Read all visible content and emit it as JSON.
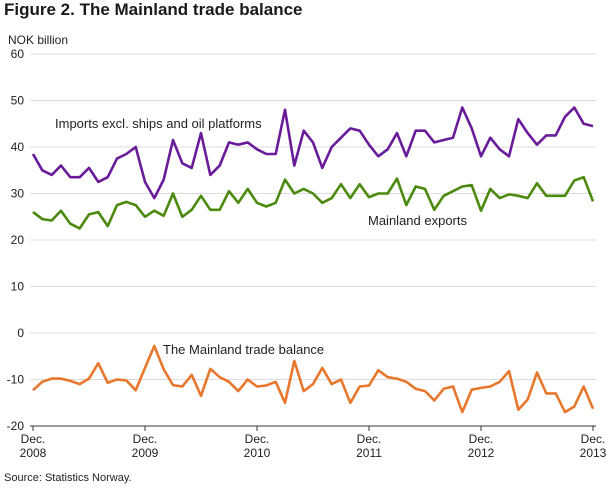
{
  "figure_title": "Figure 2. The Mainland trade balance",
  "source": "Source: Statistics Norway.",
  "chart_data": {
    "type": "line",
    "ylabel": "NOK billion",
    "ylim": [
      -20,
      60
    ],
    "yticks": [
      -20,
      -10,
      0,
      10,
      20,
      30,
      40,
      50,
      60
    ],
    "grid": true,
    "x_start": "Dec. 2008",
    "x_end": "Dec. 2013",
    "xticks": [
      {
        "month": "Dec.",
        "year": "2008"
      },
      {
        "month": "Dec.",
        "year": "2009"
      },
      {
        "month": "Dec.",
        "year": "2010"
      },
      {
        "month": "Dec.",
        "year": "2011"
      },
      {
        "month": "Dec.",
        "year": "2012"
      },
      {
        "month": "Dec.",
        "year": "2013"
      }
    ],
    "series": [
      {
        "name": "Imports excl. ships and oil platforms",
        "color": "#6a1b9a",
        "values": [
          38.5,
          35,
          34,
          36,
          33.5,
          33.5,
          35.5,
          32.5,
          33.5,
          37.5,
          38.5,
          40,
          32.5,
          29,
          33,
          41.5,
          36.5,
          35.5,
          43,
          34,
          36,
          41,
          40.5,
          41,
          39.5,
          38.5,
          38.5,
          48,
          36,
          43.5,
          41,
          35.5,
          40,
          42,
          44,
          43.5,
          40.5,
          38,
          39.5,
          43,
          38,
          43.5,
          43.5,
          41,
          41.5,
          42,
          48.5,
          44,
          38,
          42,
          39.5,
          38,
          46,
          43,
          40.5,
          42.5,
          42.5,
          46.5,
          48.5,
          45,
          44.5
        ]
      },
      {
        "name": "Mainland exports",
        "color": "#4b8a0e",
        "values": [
          26,
          24.5,
          24.2,
          26.3,
          23.5,
          22.5,
          25.5,
          26,
          23,
          27.5,
          28.2,
          27.5,
          25,
          26.3,
          25.2,
          30,
          25,
          26.5,
          29.5,
          26.5,
          26.5,
          30.5,
          28,
          31,
          28,
          27.2,
          28,
          33,
          30,
          31,
          30,
          28,
          29,
          32,
          29,
          32,
          29.2,
          30,
          30,
          33.2,
          27.5,
          31.5,
          31,
          26.5,
          29.5,
          30.5,
          31.5,
          31.8,
          26.3,
          31,
          29,
          29.8,
          29.5,
          29,
          32.2,
          29.5,
          29.5,
          29.5,
          32.8,
          33.5,
          28.3
        ]
      },
      {
        "name": "The Mainland trade balance",
        "color": "#e8772e",
        "values": [
          -12.3,
          -10.5,
          -9.8,
          -9.8,
          -10.3,
          -11,
          -9.8,
          -6.5,
          -10.7,
          -10,
          -10.2,
          -12.3,
          -7.5,
          -2.8,
          -7.8,
          -11.2,
          -11.5,
          -9,
          -13.5,
          -7.7,
          -9.5,
          -10.5,
          -12.5,
          -10,
          -11.5,
          -11.3,
          -10.5,
          -15,
          -6,
          -12.5,
          -11,
          -7.5,
          -11,
          -10,
          -15,
          -11.5,
          -11.3,
          -8,
          -9.5,
          -9.8,
          -10.5,
          -12,
          -12.5,
          -14.5,
          -12,
          -11.5,
          -17,
          -12.2,
          -11.8,
          -11.5,
          -10.5,
          -8.2,
          -16.5,
          -14.3,
          -8.5,
          -13,
          -13,
          -17,
          -15.8,
          -11.5,
          -16.3
        ]
      }
    ],
    "series_labels": [
      {
        "series": 0,
        "text": "Imports excl. ships and oil platforms"
      },
      {
        "series": 1,
        "text": "Mainland exports"
      },
      {
        "series": 2,
        "text": "The Mainland trade balance"
      }
    ]
  }
}
